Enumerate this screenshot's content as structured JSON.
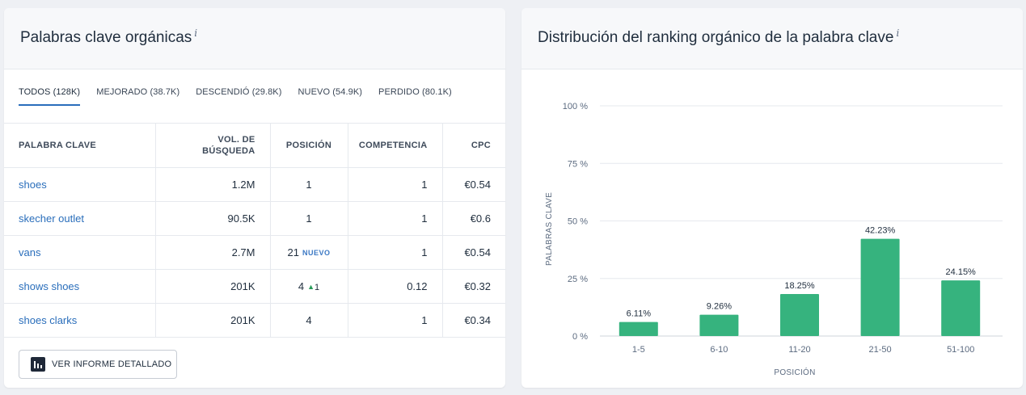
{
  "left_card": {
    "title": "Palabras clave orgánicas",
    "info_icon": "i",
    "tabs": [
      {
        "label": "TODOS (128K)",
        "active": true
      },
      {
        "label": "MEJORADO (38.7K)",
        "active": false
      },
      {
        "label": "DESCENDIÓ (29.8K)",
        "active": false
      },
      {
        "label": "NUEVO (54.9K)",
        "active": false
      },
      {
        "label": "PERDIDO (80.1K)",
        "active": false
      }
    ],
    "columns": {
      "keyword": "PALABRA CLAVE",
      "volume_line1": "VOL. DE",
      "volume_line2": "BÚSQUEDA",
      "position": "POSICIÓN",
      "competition": "COMPETENCIA",
      "cpc": "CPC"
    },
    "rows": [
      {
        "keyword": "shoes",
        "volume": "1.2M",
        "position": "1",
        "badge": "",
        "change": "",
        "competition": "1",
        "cpc": "€0.54"
      },
      {
        "keyword": "skecher outlet",
        "volume": "90.5K",
        "position": "1",
        "badge": "",
        "change": "",
        "competition": "1",
        "cpc": "€0.6"
      },
      {
        "keyword": "vans",
        "volume": "2.7M",
        "position": "21",
        "badge": "NUEVO",
        "change": "",
        "competition": "1",
        "cpc": "€0.54"
      },
      {
        "keyword": "shows shoes",
        "volume": "201K",
        "position": "4",
        "badge": "",
        "change": "1",
        "competition": "0.12",
        "cpc": "€0.32"
      },
      {
        "keyword": "shoes clarks",
        "volume": "201K",
        "position": "4",
        "badge": "",
        "change": "",
        "competition": "1",
        "cpc": "€0.34"
      }
    ],
    "report_button": "VER INFORME DETALLADO"
  },
  "right_card": {
    "title": "Distribución del ranking orgánico de la palabra clave",
    "info_icon": "i"
  },
  "colors": {
    "accent_link": "#2a6ebb",
    "bar": "#36b37e",
    "up_arrow": "#279a58"
  },
  "chart_data": {
    "type": "bar",
    "categories": [
      "1-5",
      "6-10",
      "11-20",
      "21-50",
      "51-100"
    ],
    "values": [
      6.11,
      9.26,
      18.25,
      42.23,
      24.15
    ],
    "data_labels": [
      "6.11%",
      "9.26%",
      "18.25%",
      "42.23%",
      "24.15%"
    ],
    "y_ticks": [
      0,
      25,
      50,
      75,
      100
    ],
    "y_tick_labels": [
      "0 %",
      "25 %",
      "50 %",
      "75 %",
      "100 %"
    ],
    "ylim": [
      0,
      100
    ],
    "xlabel": "POSICIÓN",
    "ylabel": "PALABRAS CLAVE",
    "grid": true,
    "legend": "none"
  }
}
